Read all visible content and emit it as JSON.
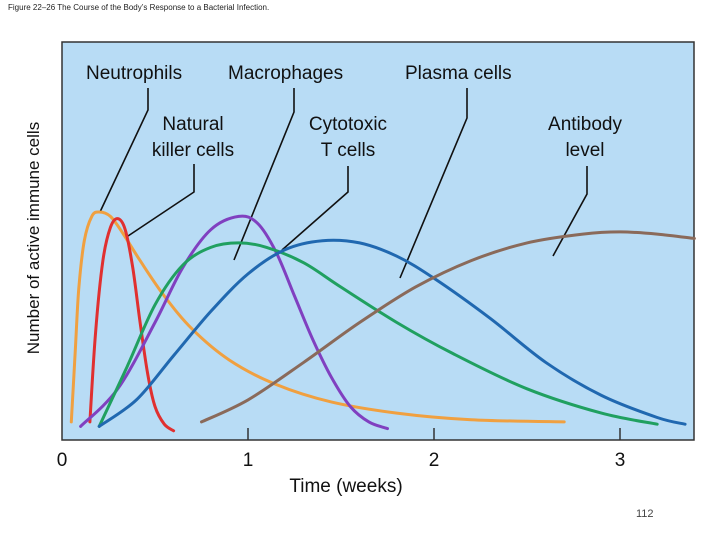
{
  "caption": "Figure 22–26 The Course of the Body’s Response to a Bacterial Infection.",
  "page_number": "112",
  "chart_data": {
    "type": "line",
    "title": "",
    "xlabel": "Time (weeks)",
    "ylabel": "Number of active immune cells",
    "xlim": [
      0,
      3.4
    ],
    "ylim": [
      0,
      1
    ],
    "x_ticks": [
      "0",
      "1",
      "2",
      "3"
    ],
    "grid": false,
    "background": "#b8dcf5",
    "annotation_labels": [
      "Neutrophils",
      "Macrophages",
      "Plasma cells",
      "Natural\nkiller cells",
      "Cytotoxic\nT cells",
      "Antibody\nlevel"
    ],
    "series": [
      {
        "name": "Neutrophils",
        "color": "#f0a040",
        "x": [
          0.05,
          0.07,
          0.09,
          0.12,
          0.16,
          0.2,
          0.26,
          0.33,
          0.42,
          0.55,
          0.7,
          0.9,
          1.15,
          1.45,
          1.8,
          2.2,
          2.7
        ],
        "y": [
          0.05,
          0.35,
          0.65,
          0.87,
          0.98,
          1.0,
          0.98,
          0.9,
          0.78,
          0.62,
          0.47,
          0.33,
          0.22,
          0.14,
          0.09,
          0.06,
          0.05
        ]
      },
      {
        "name": "Natural killer cells",
        "color": "#e03030",
        "x": [
          0.15,
          0.18,
          0.22,
          0.26,
          0.3,
          0.34,
          0.38,
          0.42,
          0.46,
          0.5,
          0.55,
          0.6
        ],
        "y": [
          0.05,
          0.45,
          0.78,
          0.93,
          0.97,
          0.92,
          0.75,
          0.5,
          0.27,
          0.12,
          0.04,
          0.01
        ]
      },
      {
        "name": "Macrophages",
        "color": "#8040c0",
        "x": [
          0.1,
          0.3,
          0.5,
          0.65,
          0.8,
          0.95,
          1.05,
          1.15,
          1.25,
          1.35,
          1.45,
          1.55,
          1.65,
          1.75
        ],
        "y": [
          0.03,
          0.2,
          0.5,
          0.75,
          0.92,
          0.98,
          0.95,
          0.82,
          0.62,
          0.42,
          0.25,
          0.12,
          0.05,
          0.02
        ]
      },
      {
        "name": "Cytotoxic T cells",
        "color": "#20a060",
        "x": [
          0.2,
          0.35,
          0.5,
          0.65,
          0.8,
          0.95,
          1.1,
          1.3,
          1.5,
          1.8,
          2.1,
          2.5,
          2.9,
          3.2
        ],
        "y": [
          0.03,
          0.3,
          0.58,
          0.76,
          0.84,
          0.86,
          0.84,
          0.77,
          0.66,
          0.5,
          0.36,
          0.2,
          0.09,
          0.04
        ]
      },
      {
        "name": "Plasma cells",
        "color": "#2068b0",
        "x": [
          0.2,
          0.4,
          0.6,
          0.8,
          1.0,
          1.2,
          1.4,
          1.6,
          1.8,
          2.0,
          2.3,
          2.6,
          2.9,
          3.2,
          3.35
        ],
        "y": [
          0.03,
          0.15,
          0.35,
          0.55,
          0.72,
          0.83,
          0.87,
          0.86,
          0.8,
          0.7,
          0.52,
          0.32,
          0.17,
          0.07,
          0.04
        ]
      },
      {
        "name": "Antibody level",
        "color": "#8a6a5a",
        "x": [
          0.75,
          1.0,
          1.3,
          1.6,
          1.9,
          2.2,
          2.5,
          2.8,
          3.0,
          3.2,
          3.4
        ],
        "y": [
          0.05,
          0.15,
          0.32,
          0.5,
          0.66,
          0.78,
          0.86,
          0.9,
          0.91,
          0.9,
          0.88
        ]
      }
    ]
  }
}
